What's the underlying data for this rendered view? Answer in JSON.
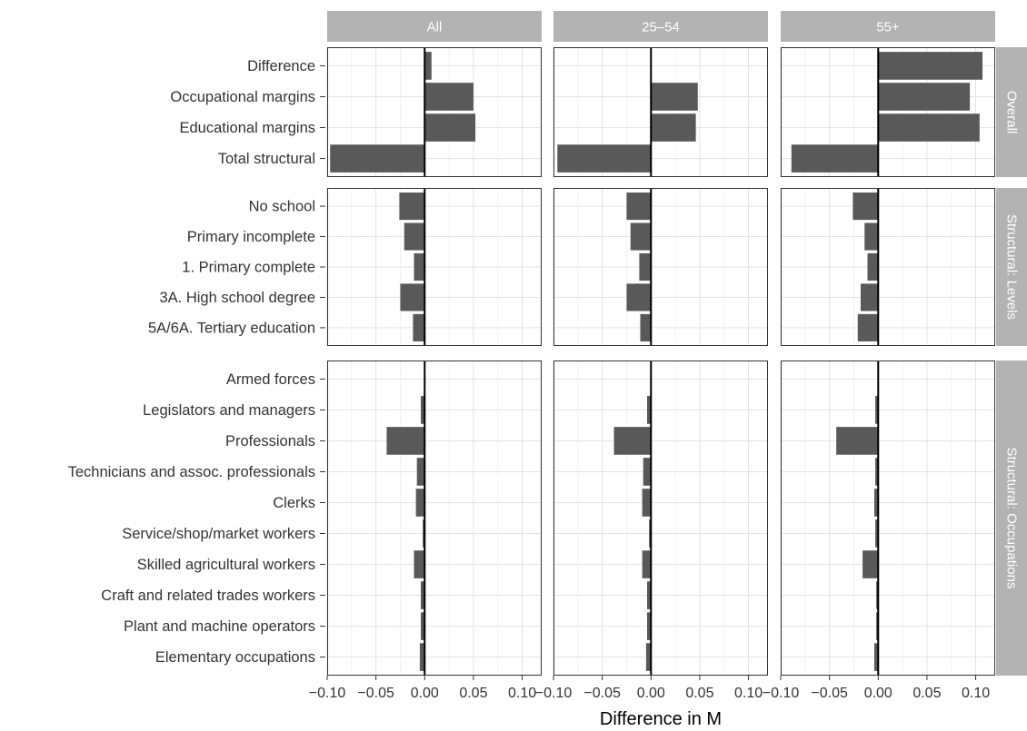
{
  "chart_data": {
    "type": "bar",
    "orientation": "horizontal",
    "title": "",
    "xlabel": "Difference in M",
    "ylabel": "",
    "xlim": [
      -0.1,
      0.12
    ],
    "xticks": [
      -0.1,
      -0.05,
      0.0,
      0.05,
      0.1
    ],
    "xtick_labels": [
      "−0.10",
      "−0.05",
      "0.00",
      "0.05",
      "0.10"
    ],
    "grid": true,
    "columns": [
      "All",
      "25–54",
      "55+"
    ],
    "rows": [
      {
        "name": "Overall",
        "categories": [
          "Difference",
          "Occupational margins",
          "Educational margins",
          "Total structural"
        ],
        "values": {
          "All": [
            0.007,
            0.05,
            0.052,
            -0.097
          ],
          "25–54": [
            0.0,
            0.048,
            0.046,
            -0.096
          ],
          "55+": [
            0.107,
            0.094,
            0.104,
            -0.089
          ]
        }
      },
      {
        "name": "Structural: Levels",
        "categories": [
          "No school",
          "Primary incomplete",
          "1. Primary complete",
          "3A. High school degree",
          "5A/6A. Tertiary education"
        ],
        "values": {
          "All": [
            -0.026,
            -0.021,
            -0.011,
            -0.025,
            -0.012
          ],
          "25–54": [
            -0.025,
            -0.021,
            -0.012,
            -0.025,
            -0.011
          ],
          "55+": [
            -0.026,
            -0.014,
            -0.011,
            -0.018,
            -0.021
          ]
        }
      },
      {
        "name": "Structural: Occupations",
        "categories": [
          "Armed forces",
          "Legislators and managers",
          "Professionals",
          "Technicians and assoc. professionals",
          "Clerks",
          "Service/shop/market workers",
          "Skilled agricultural workers",
          "Craft and related trades workers ",
          "Plant and machine operators",
          "Elementary occupations"
        ],
        "values": {
          "All": [
            0.0,
            -0.004,
            -0.039,
            -0.008,
            -0.009,
            -0.002,
            -0.011,
            -0.004,
            -0.004,
            -0.005
          ],
          "25–54": [
            0.0,
            -0.004,
            -0.038,
            -0.008,
            -0.009,
            -0.002,
            -0.009,
            -0.004,
            -0.004,
            -0.005
          ],
          "55+": [
            0.0,
            -0.003,
            -0.043,
            -0.003,
            -0.004,
            -0.003,
            -0.016,
            -0.002,
            -0.002,
            -0.004
          ]
        }
      }
    ],
    "colors": {
      "bar": "#595959",
      "strip_bg": "#b3b3b3",
      "strip_text": "#ffffff",
      "grid_major": "#e3e3e3",
      "grid_minor": "#f2f2f2",
      "panel_border": "#333333",
      "zero_line": "#000000"
    }
  }
}
